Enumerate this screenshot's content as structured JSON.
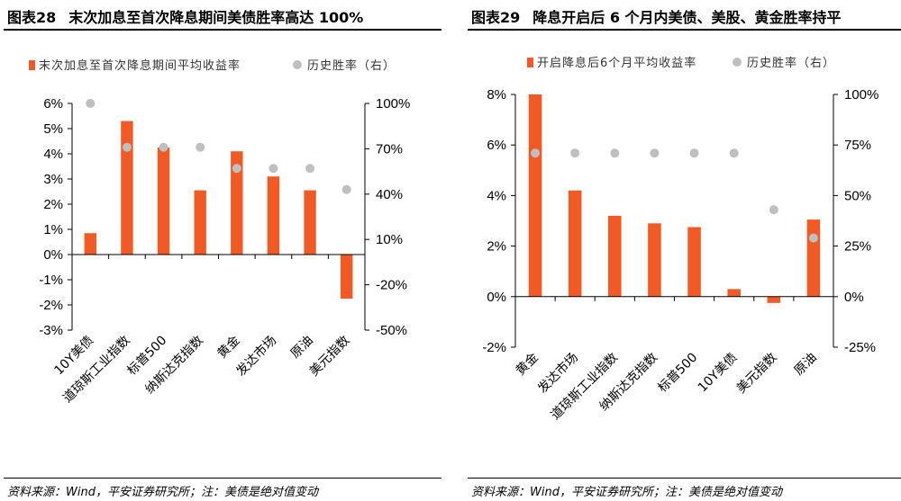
{
  "panels": [
    {
      "number": "图表28",
      "title": "末次加息至首次降息期间美债胜率高达 100%",
      "source": "资料来源：Wind，平安证券研究所；注：美债是绝对值变动"
    },
    {
      "number": "图表29",
      "title": "降息开启后 6 个月内美债、美股、黄金胜率持平",
      "source": "资料来源：Wind，平安证券研究所；注：美债是绝对值变动"
    }
  ],
  "colors": {
    "bar": "#f15a24",
    "dot": "#bfbfbf",
    "axis": "#000000"
  },
  "chart_data": [
    {
      "type": "bar",
      "categories": [
        "10Y美债",
        "道琼斯工业指数",
        "标普500",
        "纳斯达克指数",
        "黄金",
        "发达市场",
        "原油",
        "美元指数"
      ],
      "series": [
        {
          "name": "末次加息至首次降息期间平均收益率",
          "type": "bar",
          "axis": "left",
          "values": [
            0.85,
            5.3,
            4.25,
            2.55,
            4.1,
            3.1,
            2.55,
            -1.75
          ]
        },
        {
          "name": "历史胜率（右）",
          "type": "scatter",
          "axis": "right",
          "values": [
            100,
            71,
            71,
            71,
            57,
            57,
            57,
            43
          ]
        }
      ],
      "y_left": {
        "min": -3,
        "max": 6,
        "ticks": [
          -3,
          -2,
          -1,
          0,
          1,
          2,
          3,
          4,
          5,
          6
        ],
        "tick_labels": [
          "-3%",
          "-2%",
          "-1%",
          "0%",
          "1%",
          "2%",
          "3%",
          "4%",
          "5%",
          "6%"
        ]
      },
      "y_right": {
        "min": -50,
        "max": 100,
        "ticks": [
          -50,
          -20,
          10,
          40,
          70,
          100
        ],
        "tick_labels": [
          "-50%",
          "-20%",
          "10%",
          "40%",
          "70%",
          "100%"
        ]
      },
      "legend": "top",
      "grid": false
    },
    {
      "type": "bar",
      "categories": [
        "黄金",
        "发达市场",
        "道琼斯工业指数",
        "纳斯达克指数",
        "标普500",
        "10Y美债",
        "美元指数",
        "原油"
      ],
      "series": [
        {
          "name": "开启降息后6个月平均收益率",
          "type": "bar",
          "axis": "left",
          "values": [
            8.0,
            4.2,
            3.2,
            2.9,
            2.75,
            0.3,
            -0.25,
            3.05
          ]
        },
        {
          "name": "历史胜率（右）",
          "type": "scatter",
          "axis": "right",
          "values": [
            71,
            71,
            71,
            71,
            71,
            71,
            43,
            29
          ]
        }
      ],
      "y_left": {
        "min": -2,
        "max": 8,
        "ticks": [
          -2,
          0,
          2,
          4,
          6,
          8
        ],
        "tick_labels": [
          "-2%",
          "0%",
          "2%",
          "4%",
          "6%",
          "8%"
        ]
      },
      "y_right": {
        "min": -25,
        "max": 100,
        "ticks": [
          -25,
          0,
          25,
          50,
          75,
          100
        ],
        "tick_labels": [
          "-25%",
          "0%",
          "25%",
          "50%",
          "75%",
          "100%"
        ]
      },
      "legend": "top",
      "grid": false
    }
  ]
}
